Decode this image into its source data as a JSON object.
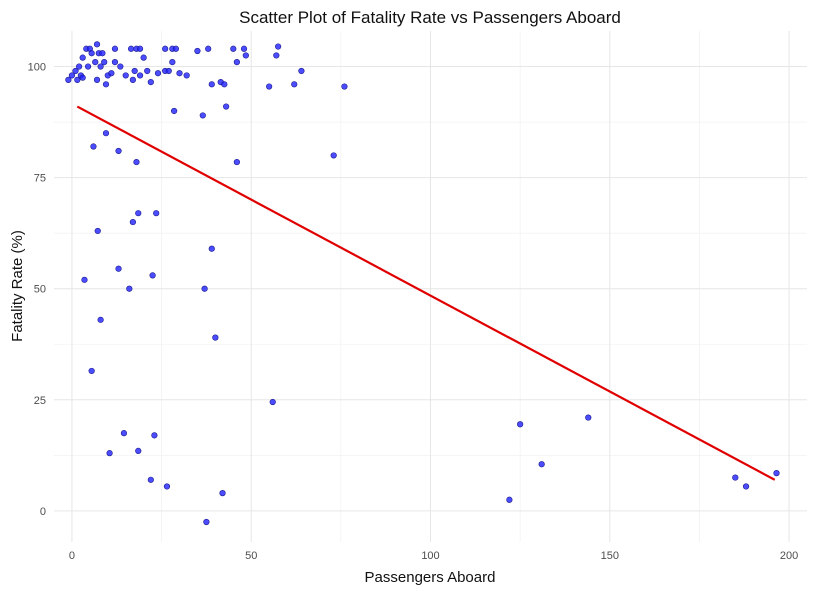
{
  "chart_data": {
    "type": "scatter",
    "title": "Scatter Plot of Fatality Rate vs Passengers Aboard",
    "xlabel": "Passengers Aboard",
    "ylabel": "Fatality Rate (%)",
    "xlim": [
      -5,
      205
    ],
    "ylim": [
      -7,
      108
    ],
    "x_ticks": [
      0,
      50,
      100,
      150,
      200
    ],
    "y_ticks": [
      0,
      25,
      50,
      75,
      100
    ],
    "grid": true,
    "legend": "none",
    "colors": {
      "points": "#1f1fff",
      "points_edge": "#1a1a8c",
      "trend": "#e00000"
    },
    "trend_line": {
      "x": [
        1.5,
        196
      ],
      "y": [
        91,
        7
      ]
    },
    "points": [
      {
        "x": -1,
        "y": 97
      },
      {
        "x": 0,
        "y": 98
      },
      {
        "x": 1,
        "y": 99
      },
      {
        "x": 1.5,
        "y": 97
      },
      {
        "x": 2,
        "y": 100
      },
      {
        "x": 2.5,
        "y": 98
      },
      {
        "x": 3,
        "y": 102
      },
      {
        "x": 3,
        "y": 97.5
      },
      {
        "x": 3.5,
        "y": 52
      },
      {
        "x": 4,
        "y": 104
      },
      {
        "x": 4.5,
        "y": 100
      },
      {
        "x": 5,
        "y": 104
      },
      {
        "x": 5.5,
        "y": 31.5
      },
      {
        "x": 5.5,
        "y": 103
      },
      {
        "x": 6,
        "y": 82
      },
      {
        "x": 6.5,
        "y": 101
      },
      {
        "x": 7,
        "y": 105
      },
      {
        "x": 7,
        "y": 97
      },
      {
        "x": 7.2,
        "y": 63
      },
      {
        "x": 7.5,
        "y": 103
      },
      {
        "x": 8,
        "y": 43
      },
      {
        "x": 8,
        "y": 100
      },
      {
        "x": 8.5,
        "y": 103
      },
      {
        "x": 9,
        "y": 101
      },
      {
        "x": 9.5,
        "y": 96
      },
      {
        "x": 9.5,
        "y": 85
      },
      {
        "x": 10,
        "y": 98
      },
      {
        "x": 10.5,
        "y": 13
      },
      {
        "x": 11,
        "y": 98.5
      },
      {
        "x": 12,
        "y": 104
      },
      {
        "x": 12,
        "y": 101
      },
      {
        "x": 13,
        "y": 81
      },
      {
        "x": 13,
        "y": 54.5
      },
      {
        "x": 13.5,
        "y": 100
      },
      {
        "x": 14.5,
        "y": 17.5
      },
      {
        "x": 15,
        "y": 98
      },
      {
        "x": 16,
        "y": 50
      },
      {
        "x": 16.5,
        "y": 104
      },
      {
        "x": 17,
        "y": 65
      },
      {
        "x": 17,
        "y": 97
      },
      {
        "x": 17.5,
        "y": 99
      },
      {
        "x": 18,
        "y": 104
      },
      {
        "x": 18,
        "y": 78.5
      },
      {
        "x": 18.5,
        "y": 13.5
      },
      {
        "x": 18.5,
        "y": 67
      },
      {
        "x": 19,
        "y": 98
      },
      {
        "x": 19,
        "y": 104
      },
      {
        "x": 20,
        "y": 102
      },
      {
        "x": 21,
        "y": 99
      },
      {
        "x": 22,
        "y": 7
      },
      {
        "x": 22,
        "y": 96.5
      },
      {
        "x": 22.5,
        "y": 53
      },
      {
        "x": 23,
        "y": 17
      },
      {
        "x": 23.5,
        "y": 67
      },
      {
        "x": 24,
        "y": 98.5
      },
      {
        "x": 26,
        "y": 104
      },
      {
        "x": 26,
        "y": 99
      },
      {
        "x": 26.5,
        "y": 5.5
      },
      {
        "x": 27,
        "y": 99
      },
      {
        "x": 28,
        "y": 101
      },
      {
        "x": 28,
        "y": 104
      },
      {
        "x": 28.5,
        "y": 90
      },
      {
        "x": 29,
        "y": 104
      },
      {
        "x": 30,
        "y": 98.5
      },
      {
        "x": 32,
        "y": 98
      },
      {
        "x": 35,
        "y": 103.5
      },
      {
        "x": 36.5,
        "y": 89
      },
      {
        "x": 37,
        "y": 50
      },
      {
        "x": 37.5,
        "y": -2.5
      },
      {
        "x": 38,
        "y": 104
      },
      {
        "x": 39,
        "y": 96
      },
      {
        "x": 39,
        "y": 59
      },
      {
        "x": 40,
        "y": 39
      },
      {
        "x": 41.5,
        "y": 96.5
      },
      {
        "x": 42,
        "y": 4
      },
      {
        "x": 42.5,
        "y": 96
      },
      {
        "x": 43,
        "y": 91
      },
      {
        "x": 45,
        "y": 104
      },
      {
        "x": 46,
        "y": 101
      },
      {
        "x": 46,
        "y": 78.5
      },
      {
        "x": 48,
        "y": 104
      },
      {
        "x": 48.5,
        "y": 102.5
      },
      {
        "x": 55,
        "y": 95.5
      },
      {
        "x": 56,
        "y": 24.5
      },
      {
        "x": 57,
        "y": 102.5
      },
      {
        "x": 57.5,
        "y": 104.5
      },
      {
        "x": 62,
        "y": 96
      },
      {
        "x": 64,
        "y": 99
      },
      {
        "x": 73,
        "y": 80
      },
      {
        "x": 76,
        "y": 95.5
      },
      {
        "x": 122,
        "y": 2.5
      },
      {
        "x": 125,
        "y": 19.5
      },
      {
        "x": 131,
        "y": 10.5
      },
      {
        "x": 144,
        "y": 21
      },
      {
        "x": 185,
        "y": 7.5
      },
      {
        "x": 188,
        "y": 5.5
      },
      {
        "x": 196.5,
        "y": 8.5
      }
    ]
  }
}
